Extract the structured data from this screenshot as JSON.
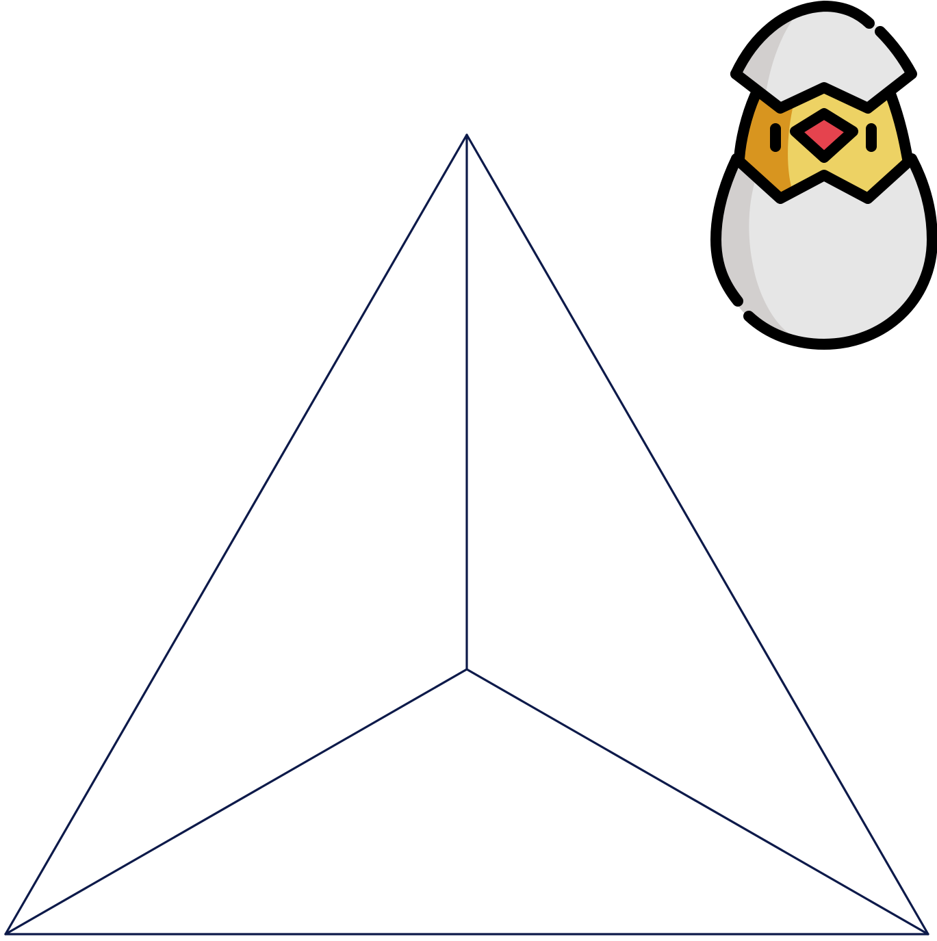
{
  "diagram": {
    "shape": "triangle divided into three regions from an interior point",
    "line_color": "#0d1a4a",
    "regions": 3
  },
  "illustration": {
    "icon": "hatching-chick-icon",
    "colors": {
      "shell": "#e6e6e6",
      "shell_shadow": "#d2cfce",
      "chick": "#edd264",
      "chick_shadow": "#d8951f",
      "beak": "#e5434e",
      "outline": "#000000"
    }
  }
}
